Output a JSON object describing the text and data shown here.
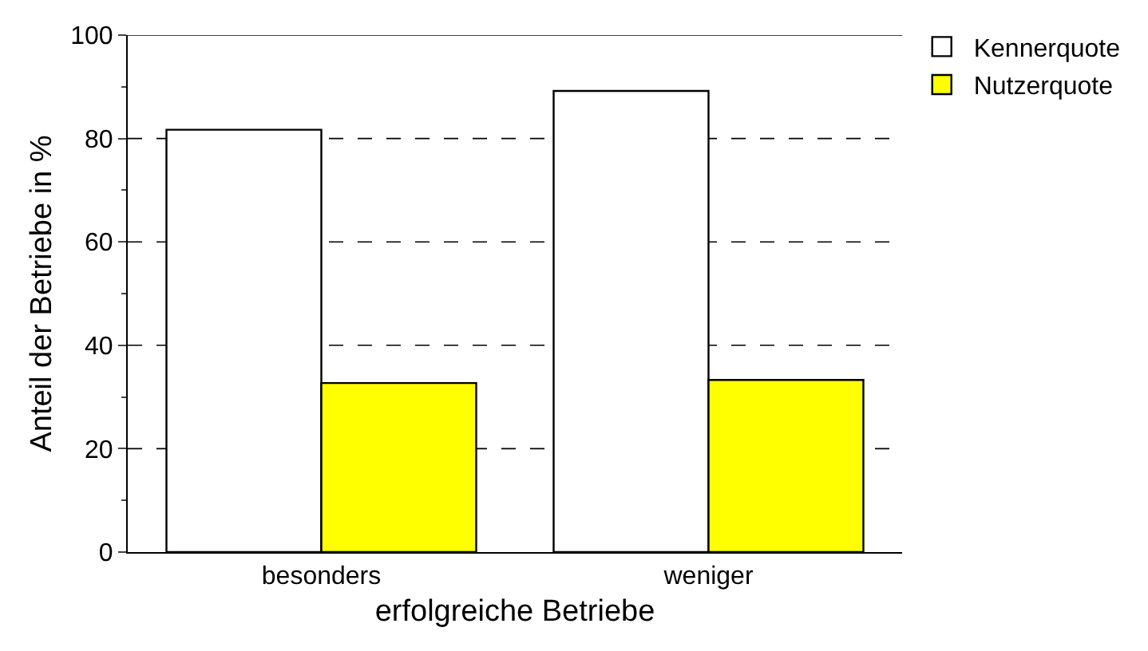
{
  "chart_data": {
    "type": "bar",
    "xlabel": "erfolgreiche Betriebe",
    "ylabel": "Anteil der Betriebe in %",
    "categories": [
      "besonders",
      "weniger"
    ],
    "series": [
      {
        "name": "Kennerquote",
        "color": "#ffffff",
        "values": [
          81.7,
          89.2
        ]
      },
      {
        "name": "Nutzerquote",
        "color": "#ffff00",
        "values": [
          32.7,
          33.3
        ]
      }
    ],
    "ylim": [
      0,
      100
    ],
    "yticks": [
      0,
      20,
      40,
      60,
      80,
      100
    ],
    "grid": "y",
    "legend": "top right"
  }
}
